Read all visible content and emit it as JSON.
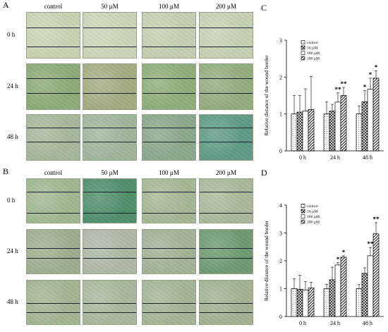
{
  "panels": {
    "A": {
      "label": "A",
      "columns": [
        "control",
        "50 µM",
        "100 µM",
        "200 µM"
      ],
      "rows": [
        "0 h",
        "24 h",
        "48 h"
      ],
      "tile_colors": [
        [
          "#c8d3b2",
          "#cbd5b6",
          "#c4cfaf",
          "#c6d1b3"
        ],
        [
          "#8cab78",
          "#a3ac83",
          "#8fae7b",
          "#93ad7f"
        ],
        [
          "#a4b89a",
          "#9fb69a",
          "#8aa88a",
          "#5e9b86"
        ]
      ]
    },
    "B": {
      "label": "B",
      "columns": [
        "control",
        "50 µM",
        "100 µM",
        "200 µM"
      ],
      "rows": [
        "0 h",
        "24 h",
        "48 h"
      ],
      "tile_colors": [
        [
          "#9fb891",
          "#4f8f6a",
          "#a4b895",
          "#a9b99a"
        ],
        [
          "#9eae8f",
          "#aeb8a4",
          "#a3b296",
          "#6e9a73"
        ],
        [
          "#a2b592",
          "#a9b79b",
          "#a4b595",
          "#a1b392"
        ]
      ]
    }
  },
  "chart_data": [
    {
      "panel": "C",
      "type": "bar",
      "ylabel": "Relative distance of the wound border",
      "categories": [
        "0 h",
        "24 h",
        "48 h"
      ],
      "ylim": [
        0,
        3
      ],
      "yticks": [
        "0",
        "1",
        "2",
        "3"
      ],
      "legend_placement": "top-left",
      "series": [
        {
          "name": "control",
          "values": [
            1.0,
            1.0,
            1.0
          ],
          "errors": [
            0.5,
            0.33,
            0.22
          ],
          "stars": [
            "",
            "",
            ""
          ]
        },
        {
          "name": "50 µM",
          "values": [
            1.05,
            1.08,
            1.33
          ],
          "errors": [
            0.45,
            0.18,
            0.3
          ],
          "stars": [
            "",
            "",
            "*"
          ]
        },
        {
          "name": "100 µM",
          "values": [
            1.08,
            1.32,
            1.67
          ],
          "errors": [
            0.6,
            0.25,
            0.3
          ],
          "stars": [
            "",
            "**",
            "*"
          ]
        },
        {
          "name": "200 µM",
          "values": [
            1.12,
            1.5,
            1.97
          ],
          "errors": [
            0.9,
            0.22,
            0.2
          ],
          "stars": [
            "",
            "**",
            "*"
          ]
        }
      ]
    },
    {
      "panel": "D",
      "type": "bar",
      "ylabel": "Relative distance of the wound border",
      "categories": [
        "0 h",
        "24 h",
        "48 h"
      ],
      "ylim": [
        0,
        4
      ],
      "yticks": [
        "0",
        "1",
        "2",
        "3",
        "4"
      ],
      "legend_placement": "top-left",
      "series": [
        {
          "name": "control",
          "values": [
            1.0,
            1.0,
            1.0
          ],
          "errors": [
            0.35,
            0.15,
            0.15
          ],
          "stars": [
            "",
            "",
            ""
          ]
        },
        {
          "name": "50 µM",
          "values": [
            0.98,
            1.32,
            1.55
          ],
          "errors": [
            0.5,
            0.45,
            0.2
          ],
          "stars": [
            "",
            "",
            ""
          ]
        },
        {
          "name": "100 µM",
          "values": [
            0.95,
            1.85,
            2.18
          ],
          "errors": [
            0.3,
            0.08,
            0.3
          ],
          "stars": [
            "",
            "*",
            "**"
          ]
        },
        {
          "name": "200 µM",
          "values": [
            1.03,
            2.13,
            2.97
          ],
          "errors": [
            0.2,
            0.05,
            0.4
          ],
          "stars": [
            "",
            "*",
            "**"
          ]
        }
      ]
    }
  ]
}
